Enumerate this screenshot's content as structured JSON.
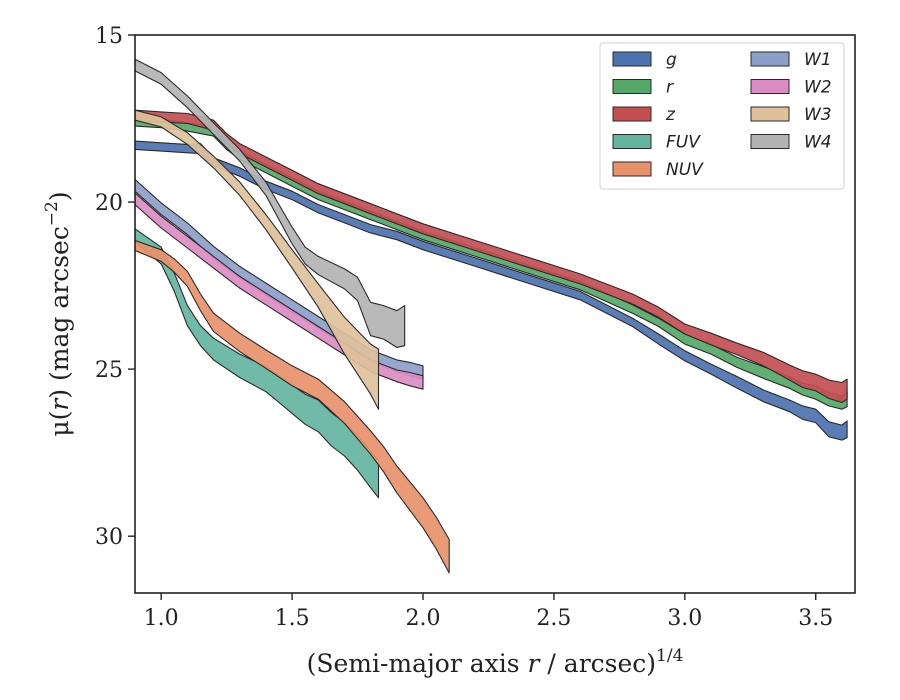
{
  "chart_data": {
    "type": "area",
    "xlabel": "(Semi-major axis r / arcsec)1/4",
    "xlabel_parts": {
      "pre": "(Semi-major axis ",
      "var": "r",
      "post": " / arcsec)",
      "sup": "1/4"
    },
    "ylabel": "μ(r) (mag arcsec−2)",
    "ylabel_parts": {
      "pre": "μ(",
      "var": "r",
      "post": ") (mag arcsec",
      "sup": "−2",
      "close": ")"
    },
    "xlim": [
      0.9,
      3.65
    ],
    "ylim": [
      15.0,
      31.7
    ],
    "y_inverted": true,
    "xticks": [
      1.0,
      1.5,
      2.0,
      2.5,
      3.0,
      3.5
    ],
    "xtick_labels": [
      "1.0",
      "1.5",
      "2.0",
      "2.5",
      "3.0",
      "3.5"
    ],
    "yticks": [
      15,
      20,
      25,
      30
    ],
    "ytick_labels": [
      "15",
      "20",
      "25",
      "30"
    ],
    "grid": false,
    "legend_position": "top-right",
    "legend_columns": 2,
    "series": [
      {
        "name": "g",
        "color": "#4c72b0",
        "x": [
          0.9,
          1.0,
          1.1,
          1.15,
          1.2,
          1.3,
          1.4,
          1.5,
          1.6,
          1.7,
          1.8,
          1.9,
          2.0,
          2.2,
          2.4,
          2.6,
          2.8,
          2.9,
          3.0,
          3.1,
          3.2,
          3.3,
          3.4,
          3.45,
          3.5,
          3.55,
          3.6,
          3.62
        ],
        "y": [
          18.3,
          18.35,
          18.4,
          18.4,
          18.8,
          19.1,
          19.5,
          19.8,
          20.2,
          20.5,
          20.8,
          21.0,
          21.3,
          21.8,
          22.3,
          22.8,
          23.6,
          24.1,
          24.6,
          25.0,
          25.4,
          25.8,
          26.1,
          26.3,
          26.4,
          26.8,
          26.9,
          26.8
        ],
        "w": [
          0.25,
          0.25,
          0.25,
          0.3,
          0.25,
          0.25,
          0.25,
          0.25,
          0.25,
          0.25,
          0.25,
          0.25,
          0.25,
          0.25,
          0.25,
          0.25,
          0.25,
          0.3,
          0.3,
          0.3,
          0.35,
          0.35,
          0.35,
          0.4,
          0.4,
          0.45,
          0.45,
          0.5
        ]
      },
      {
        "name": "r",
        "color": "#55a868",
        "x": [
          0.9,
          1.0,
          1.1,
          1.2,
          1.25,
          1.3,
          1.4,
          1.5,
          1.6,
          1.7,
          1.8,
          1.9,
          2.0,
          2.2,
          2.4,
          2.6,
          2.8,
          2.9,
          3.0,
          3.1,
          3.2,
          3.3,
          3.4,
          3.45,
          3.5,
          3.55,
          3.6,
          3.62
        ],
        "y": [
          17.6,
          17.65,
          17.75,
          17.9,
          18.3,
          18.6,
          19.0,
          19.4,
          19.8,
          20.1,
          20.4,
          20.7,
          21.0,
          21.5,
          22.0,
          22.5,
          23.2,
          23.6,
          24.1,
          24.4,
          24.8,
          25.1,
          25.4,
          25.6,
          25.7,
          25.9,
          26.0,
          25.9
        ],
        "w": [
          0.25,
          0.25,
          0.25,
          0.25,
          0.25,
          0.25,
          0.25,
          0.25,
          0.25,
          0.25,
          0.25,
          0.25,
          0.25,
          0.25,
          0.25,
          0.25,
          0.25,
          0.25,
          0.3,
          0.3,
          0.3,
          0.35,
          0.35,
          0.35,
          0.4,
          0.4,
          0.4,
          0.45
        ]
      },
      {
        "name": "z",
        "color": "#c44e52",
        "x": [
          0.9,
          1.0,
          1.1,
          1.2,
          1.25,
          1.3,
          1.4,
          1.5,
          1.6,
          1.7,
          1.8,
          1.9,
          2.0,
          2.2,
          2.4,
          2.6,
          2.8,
          2.9,
          3.0,
          3.1,
          3.2,
          3.3,
          3.4,
          3.45,
          3.5,
          3.55,
          3.6,
          3.62
        ],
        "y": [
          17.4,
          17.45,
          17.5,
          17.7,
          18.1,
          18.4,
          18.8,
          19.2,
          19.6,
          19.9,
          20.2,
          20.5,
          20.8,
          21.3,
          21.8,
          22.3,
          22.9,
          23.3,
          23.8,
          24.1,
          24.4,
          24.7,
          25.1,
          25.3,
          25.4,
          25.6,
          25.7,
          25.6
        ],
        "w": [
          0.3,
          0.3,
          0.3,
          0.3,
          0.3,
          0.3,
          0.3,
          0.3,
          0.3,
          0.3,
          0.3,
          0.3,
          0.3,
          0.3,
          0.3,
          0.3,
          0.3,
          0.3,
          0.3,
          0.35,
          0.35,
          0.4,
          0.45,
          0.5,
          0.5,
          0.55,
          0.6,
          0.6
        ]
      },
      {
        "name": "FUV",
        "color": "#64b5a0",
        "x": [
          0.9,
          1.0,
          1.05,
          1.1,
          1.15,
          1.2,
          1.3,
          1.4,
          1.45,
          1.5,
          1.55,
          1.6,
          1.65,
          1.7,
          1.75,
          1.8,
          1.83
        ],
        "y": [
          21.0,
          21.6,
          22.4,
          23.4,
          24.0,
          24.4,
          24.9,
          25.3,
          25.6,
          25.9,
          26.2,
          26.4,
          26.8,
          27.1,
          27.5,
          28.0,
          28.3
        ],
        "w": [
          0.4,
          0.5,
          0.55,
          0.6,
          0.6,
          0.65,
          0.7,
          0.75,
          0.8,
          0.85,
          0.9,
          0.95,
          1.0,
          1.0,
          1.05,
          1.1,
          1.1
        ]
      },
      {
        "name": "NUV",
        "color": "#e8916a",
        "x": [
          0.9,
          1.0,
          1.05,
          1.1,
          1.15,
          1.2,
          1.3,
          1.4,
          1.5,
          1.6,
          1.7,
          1.8,
          1.85,
          1.9,
          1.95,
          2.0,
          2.05,
          2.1
        ],
        "y": [
          21.3,
          21.6,
          21.9,
          22.3,
          23.0,
          23.6,
          24.2,
          24.7,
          25.2,
          25.6,
          26.3,
          27.2,
          27.7,
          28.3,
          28.8,
          29.3,
          29.9,
          30.6
        ],
        "w": [
          0.3,
          0.35,
          0.4,
          0.45,
          0.5,
          0.55,
          0.55,
          0.55,
          0.6,
          0.6,
          0.65,
          0.7,
          0.75,
          0.8,
          0.85,
          0.9,
          0.95,
          1.0
        ]
      },
      {
        "name": "W1",
        "color": "#8c9fc9",
        "x": [
          0.9,
          1.0,
          1.1,
          1.2,
          1.3,
          1.4,
          1.5,
          1.6,
          1.7,
          1.8,
          1.9,
          1.95,
          2.0
        ],
        "y": [
          19.5,
          20.2,
          20.8,
          21.5,
          22.1,
          22.6,
          23.1,
          23.6,
          24.1,
          24.6,
          24.9,
          25.0,
          25.1
        ],
        "w": [
          0.35,
          0.35,
          0.35,
          0.35,
          0.35,
          0.35,
          0.35,
          0.35,
          0.35,
          0.35,
          0.35,
          0.4,
          0.4
        ]
      },
      {
        "name": "W2",
        "color": "#dd8cc3",
        "x": [
          0.9,
          1.0,
          1.1,
          1.2,
          1.3,
          1.4,
          1.5,
          1.6,
          1.7,
          1.8,
          1.9,
          1.95,
          2.0
        ],
        "y": [
          19.9,
          20.6,
          21.2,
          21.8,
          22.4,
          22.9,
          23.4,
          23.9,
          24.4,
          24.9,
          25.2,
          25.3,
          25.4
        ],
        "w": [
          0.35,
          0.35,
          0.35,
          0.35,
          0.35,
          0.35,
          0.35,
          0.35,
          0.35,
          0.35,
          0.35,
          0.4,
          0.4
        ]
      },
      {
        "name": "W3",
        "color": "#dec19b",
        "x": [
          0.9,
          1.0,
          1.1,
          1.2,
          1.3,
          1.4,
          1.5,
          1.6,
          1.65,
          1.7,
          1.75,
          1.8,
          1.83
        ],
        "y": [
          17.4,
          17.6,
          18.1,
          18.8,
          19.6,
          20.6,
          21.7,
          22.8,
          23.4,
          24.0,
          24.5,
          25.0,
          25.3
        ],
        "w": [
          0.3,
          0.3,
          0.35,
          0.35,
          0.4,
          0.45,
          0.55,
          0.7,
          0.9,
          1.1,
          1.3,
          1.5,
          1.8
        ]
      },
      {
        "name": "W4",
        "color": "#b3b3b3",
        "x": [
          0.9,
          1.0,
          1.1,
          1.2,
          1.3,
          1.4,
          1.45,
          1.5,
          1.55,
          1.6,
          1.7,
          1.75,
          1.8,
          1.85,
          1.9,
          1.93
        ],
        "y": [
          15.9,
          16.3,
          17.0,
          17.8,
          18.6,
          19.6,
          20.3,
          21.0,
          21.6,
          21.9,
          22.3,
          22.6,
          23.5,
          23.6,
          23.8,
          23.7
        ],
        "w": [
          0.35,
          0.35,
          0.35,
          0.35,
          0.35,
          0.4,
          0.45,
          0.5,
          0.5,
          0.55,
          0.6,
          0.7,
          1.0,
          1.0,
          1.1,
          1.2
        ]
      }
    ]
  }
}
